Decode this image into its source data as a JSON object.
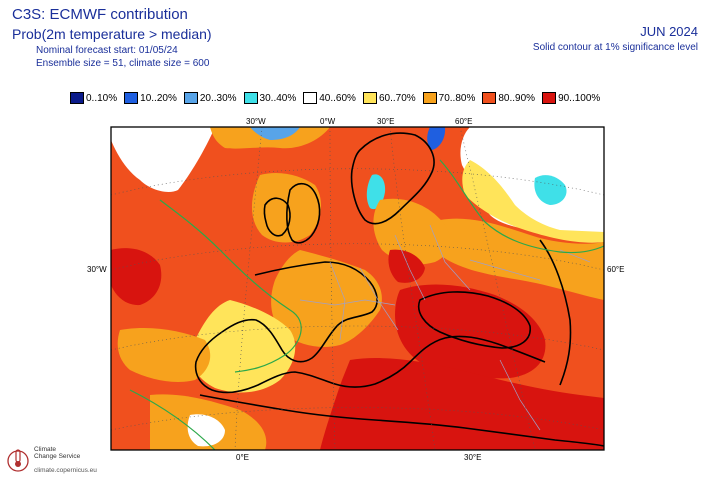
{
  "header": {
    "title": "C3S: ECMWF contribution",
    "subtitle": "Prob(2m temperature > median)",
    "forecast_start": "Nominal forecast start: 01/05/24",
    "ensemble": "Ensemble size = 51, climate size = 600",
    "period": "JUN 2024",
    "significance_note": "Solid contour at 1% significance level"
  },
  "legend": {
    "items": [
      {
        "label": "0..10%",
        "color": "#0a1a8a"
      },
      {
        "label": "10..20%",
        "color": "#1f5fe0"
      },
      {
        "label": "20..30%",
        "color": "#58a4e8"
      },
      {
        "label": "30..40%",
        "color": "#3fe0e8"
      },
      {
        "label": "40..60%",
        "color": "#ffffff"
      },
      {
        "label": "60..70%",
        "color": "#ffe45a"
      },
      {
        "label": "70..80%",
        "color": "#f7a21d"
      },
      {
        "label": "80..90%",
        "color": "#f0501e"
      },
      {
        "label": "90..100%",
        "color": "#d8140f"
      }
    ]
  },
  "grid_labels": {
    "top": [
      "30°W",
      "0°W",
      "30°E",
      "60°E"
    ],
    "left": "30°W",
    "right": "60°E",
    "bottom": [
      "0°E",
      "30°E"
    ]
  },
  "logo": {
    "line1": "Climate",
    "line2": "Change Service",
    "url": "climate.copernicus.eu"
  }
}
